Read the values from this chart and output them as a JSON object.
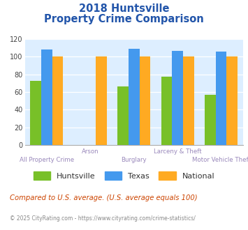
{
  "title_line1": "2018 Huntsville",
  "title_line2": "Property Crime Comparison",
  "categories": [
    "All Property Crime",
    "Arson",
    "Burglary",
    "Larceny & Theft",
    "Motor Vehicle Theft"
  ],
  "huntsville": [
    73,
    0,
    66,
    77,
    57
  ],
  "texas": [
    108,
    0,
    109,
    107,
    106
  ],
  "national": [
    100,
    100,
    100,
    100,
    100
  ],
  "arson_texas": 0,
  "arson_national": 100,
  "huntsville_color": "#78c028",
  "texas_color": "#4499ee",
  "national_color": "#ffaa22",
  "bg_color": "#ddeeff",
  "title_color": "#2255aa",
  "xlabel_color": "#9988bb",
  "ylim": [
    0,
    120
  ],
  "yticks": [
    0,
    20,
    40,
    60,
    80,
    100,
    120
  ],
  "footnote1": "Compared to U.S. average. (U.S. average equals 100)",
  "footnote2": "© 2025 CityRating.com - https://www.cityrating.com/crime-statistics/",
  "footnote1_color": "#cc4400",
  "footnote2_color": "#888888",
  "legend_labels": [
    "Huntsville",
    "Texas",
    "National"
  ],
  "x_label_top": [
    "",
    "Arson",
    "",
    "Larceny & Theft",
    ""
  ],
  "x_label_bottom": [
    "All Property Crime",
    "",
    "Burglary",
    "",
    "Motor Vehicle Theft"
  ]
}
